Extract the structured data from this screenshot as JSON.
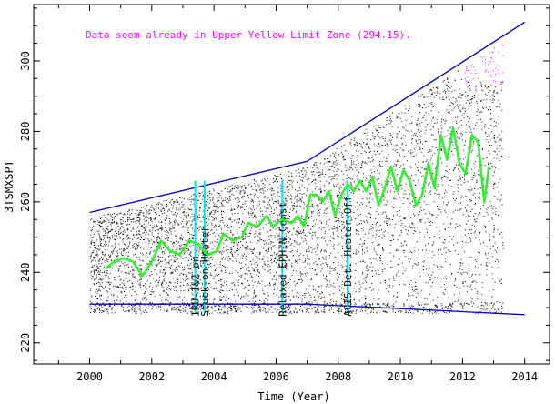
{
  "chart_data": {
    "type": "scatter",
    "title": "",
    "xlabel": "Time (Year)",
    "ylabel": "3TSMXSPT",
    "xlim": [
      1998.2,
      2014.8
    ],
    "ylim": [
      214,
      316
    ],
    "x_ticks": [
      2000,
      2002,
      2004,
      2006,
      2008,
      2010,
      2012,
      2014
    ],
    "y_ticks": [
      220,
      240,
      260,
      280,
      300
    ],
    "annotation": {
      "text": "Data seem already in Upper Yellow  Limit Zone (294.15).",
      "color": "#ff00ff"
    },
    "event_lines": [
      {
        "x": 2003.4,
        "label": "IRU-1&2 on"
      },
      {
        "x": 2003.7,
        "label": "Stuck-on Heater"
      },
      {
        "x": 2006.2,
        "label": "Relaxed EPHIN Const."
      },
      {
        "x": 2008.3,
        "label": "ACIS Det. Heater Off"
      }
    ],
    "event_line_color": "#00e5ee",
    "envelope_color": "#0000cc",
    "upper_envelope": [
      {
        "x": 2000.0,
        "y": 257
      },
      {
        "x": 2007.0,
        "y": 271.5
      },
      {
        "x": 2014.0,
        "y": 311
      }
    ],
    "lower_envelope": [
      {
        "x": 2000.0,
        "y": 231
      },
      {
        "x": 2007.0,
        "y": 231
      },
      {
        "x": 2014.0,
        "y": 228
      }
    ],
    "series": [
      {
        "color": "#33ee33",
        "points": [
          {
            "x": 2000.5,
            "y": 241
          },
          {
            "x": 2000.8,
            "y": 243
          },
          {
            "x": 2001.1,
            "y": 244
          },
          {
            "x": 2001.4,
            "y": 243
          },
          {
            "x": 2001.7,
            "y": 239
          },
          {
            "x": 2002.0,
            "y": 243
          },
          {
            "x": 2002.3,
            "y": 249
          },
          {
            "x": 2002.6,
            "y": 246
          },
          {
            "x": 2002.9,
            "y": 245
          },
          {
            "x": 2003.2,
            "y": 249
          },
          {
            "x": 2003.5,
            "y": 248
          },
          {
            "x": 2003.8,
            "y": 245
          },
          {
            "x": 2004.1,
            "y": 246
          },
          {
            "x": 2004.3,
            "y": 251
          },
          {
            "x": 2004.6,
            "y": 249
          },
          {
            "x": 2004.9,
            "y": 250
          },
          {
            "x": 2005.1,
            "y": 254
          },
          {
            "x": 2005.4,
            "y": 253
          },
          {
            "x": 2005.7,
            "y": 256
          },
          {
            "x": 2005.9,
            "y": 253
          },
          {
            "x": 2006.2,
            "y": 255
          },
          {
            "x": 2006.5,
            "y": 254
          },
          {
            "x": 2006.7,
            "y": 256
          },
          {
            "x": 2006.9,
            "y": 253
          },
          {
            "x": 2007.1,
            "y": 262
          },
          {
            "x": 2007.3,
            "y": 262
          },
          {
            "x": 2007.5,
            "y": 260
          },
          {
            "x": 2007.7,
            "y": 263
          },
          {
            "x": 2007.9,
            "y": 256
          },
          {
            "x": 2008.1,
            "y": 262
          },
          {
            "x": 2008.3,
            "y": 265
          },
          {
            "x": 2008.5,
            "y": 263
          },
          {
            "x": 2008.7,
            "y": 266
          },
          {
            "x": 2008.9,
            "y": 263
          },
          {
            "x": 2009.1,
            "y": 267
          },
          {
            "x": 2009.3,
            "y": 259
          },
          {
            "x": 2009.5,
            "y": 264
          },
          {
            "x": 2009.7,
            "y": 270
          },
          {
            "x": 2009.9,
            "y": 263
          },
          {
            "x": 2010.1,
            "y": 269
          },
          {
            "x": 2010.3,
            "y": 266
          },
          {
            "x": 2010.5,
            "y": 259
          },
          {
            "x": 2010.7,
            "y": 262
          },
          {
            "x": 2010.9,
            "y": 271
          },
          {
            "x": 2011.1,
            "y": 264
          },
          {
            "x": 2011.3,
            "y": 279
          },
          {
            "x": 2011.5,
            "y": 272
          },
          {
            "x": 2011.7,
            "y": 281
          },
          {
            "x": 2011.9,
            "y": 271
          },
          {
            "x": 2012.1,
            "y": 268
          },
          {
            "x": 2012.3,
            "y": 279
          },
          {
            "x": 2012.5,
            "y": 277
          },
          {
            "x": 2012.7,
            "y": 260
          },
          {
            "x": 2012.85,
            "y": 270
          }
        ]
      }
    ],
    "scatter_fill": {
      "x_start": 2000.0,
      "x_end": 2013.3,
      "color": "#000000"
    },
    "highlight_zone": {
      "y_min": 294.15,
      "x_start": 2012.0,
      "x_end": 2013.3,
      "color": "#ff00ff"
    }
  }
}
